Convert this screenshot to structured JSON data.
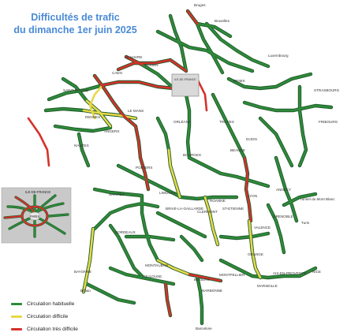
{
  "title": {
    "line1": "Difficultés de trafic",
    "line2": "du dimanche 1er juin 2025"
  },
  "colors": {
    "normal": "#2e8b3a",
    "difficult": "#e6d94a",
    "very_difficult": "#d6312b",
    "road_border": "#1f5a2a"
  },
  "legend": [
    {
      "label": "Circulation habituelle",
      "color": "#2e8b3a"
    },
    {
      "label": "Circulation difficile",
      "color": "#e6d94a"
    },
    {
      "label": "Circulation très difficile",
      "color": "#d6312b"
    }
  ],
  "inset": {
    "label": "ILE-DE-FRANCE",
    "center_label": "PARIS"
  },
  "paris_box": {
    "label": "ILE-DE-FRANCE"
  },
  "cities": {
    "bruges": "Bruges",
    "bruxelles": "Bruxelles",
    "luxembourg": "Luxembourg",
    "strasbourg": "STRASBOURG",
    "fribourg": "FRIBOURG",
    "le_havre": "LE HAVRE",
    "caen": "CAEN",
    "rouen": "ROUEN",
    "reims": "REIMS",
    "saint_brieuc": "SAINT-BRIEUC",
    "rennes": "RENNES",
    "angers": "ANGERS",
    "nantes": "NANTES",
    "le_mans": "LE MANS",
    "orleans": "ORLÉANS",
    "troyes": "TROYES",
    "beaune": "BEAUNE",
    "dijon": "DIJON",
    "poitiers": "POITIERS",
    "bourges": "BOURGES",
    "limoges": "LIMOGES",
    "lyon": "LYON",
    "annecy": "ANNECY",
    "saint_etienne": "ST-ETIENNE",
    "roanne": "ROANNE",
    "clermont": "CLERMONT",
    "mont_blanc": "Tunnel du Mont Blanc",
    "turin": "Turin",
    "brive": "BRIVE-LA-GAILLARDE",
    "bordeaux": "BORDEAUX",
    "grenoble": "GRENOBLE",
    "valence": "VALENCE",
    "orange": "ORANGE",
    "aix": "AIX-EN-PROVENCE",
    "nice": "NICE",
    "marseille": "MARSEILLE",
    "montpellier": "MONTPELLIER",
    "beziers": "BEZIERS",
    "narbonne": "NARBONNE",
    "toulouse": "TOULOUSE",
    "montauban": "MONTAUBAN",
    "bayonne": "BAYONNE",
    "bilbao": "Bilbao",
    "barcelone": "Barcelone",
    "saintes": "SAINTES"
  }
}
